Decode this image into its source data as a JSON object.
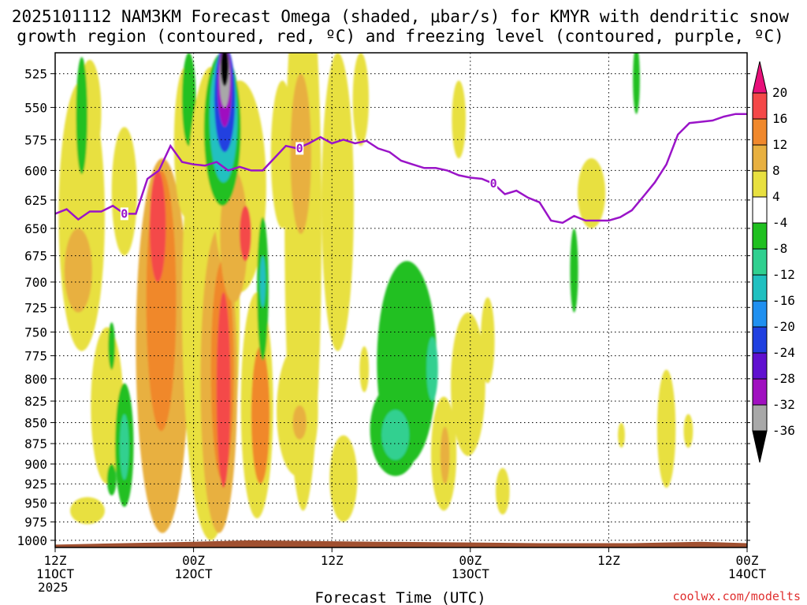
{
  "chart_data": {
    "type": "heatmap",
    "title": [
      "2025101112 NAM3KM Forecast Omega (shaded, μbar/s) for KMYR with dendritic snow",
      "growth region (contoured, red, ºC) and freezing level (contoured, purple, ºC)"
    ],
    "xlabel": "Forecast Time (UTC)",
    "credit": "coolwx.com/modelts",
    "x_range_hours": [
      0,
      60
    ],
    "x_ticks": [
      {
        "hour": 0,
        "lines": [
          "12Z",
          "11OCT",
          "2025"
        ]
      },
      {
        "hour": 12,
        "lines": [
          "00Z",
          "12OCT"
        ]
      },
      {
        "hour": 24,
        "lines": [
          "12Z"
        ]
      },
      {
        "hour": 36,
        "lines": [
          "00Z",
          "13OCT"
        ]
      },
      {
        "hour": 48,
        "lines": [
          "12Z"
        ]
      },
      {
        "hour": 60,
        "lines": [
          "00Z",
          "14OCT"
        ]
      }
    ],
    "y_range_hpa": [
      510,
      1010
    ],
    "y_ticks": [
      "525",
      "550",
      "575",
      "600",
      "625",
      "650",
      "675",
      "700",
      "725",
      "750",
      "775",
      "800",
      "825",
      "850",
      "875",
      "900",
      "925",
      "950",
      "975",
      "1000"
    ],
    "colorbar": {
      "labels": [
        "20",
        "16",
        "12",
        "8",
        "4",
        "-4",
        "-8",
        "-12",
        "-16",
        "-20",
        "-24",
        "-28",
        "-32",
        "-36"
      ],
      "colors": [
        "#e8107a",
        "#f44848",
        "#f0882c",
        "#e8b040",
        "#e8e040",
        "#ffffff",
        "#20c020",
        "#30d090",
        "#20c0c0",
        "#2090f0",
        "#2040e0",
        "#6010d0",
        "#a010c0",
        "#a8a8a8",
        "#000000"
      ]
    },
    "freezing_level": {
      "label": "0",
      "label_points": [
        [
          6.0,
          637
        ],
        [
          21.2,
          582
        ],
        [
          38.0,
          611
        ]
      ],
      "points": [
        [
          0,
          637
        ],
        [
          1,
          633
        ],
        [
          2,
          642
        ],
        [
          3,
          635
        ],
        [
          4,
          635
        ],
        [
          5,
          630
        ],
        [
          6,
          637
        ],
        [
          7,
          637
        ],
        [
          8,
          607
        ],
        [
          9,
          600
        ],
        [
          10,
          580
        ],
        [
          11,
          593
        ],
        [
          12,
          595
        ],
        [
          13,
          596
        ],
        [
          14,
          593
        ],
        [
          15,
          600
        ],
        [
          16,
          597
        ],
        [
          17,
          600
        ],
        [
          18,
          600
        ],
        [
          19,
          590
        ],
        [
          20,
          580
        ],
        [
          21,
          582
        ],
        [
          22,
          578
        ],
        [
          23,
          573
        ],
        [
          24,
          578
        ],
        [
          25,
          575
        ],
        [
          26,
          578
        ],
        [
          27,
          576
        ],
        [
          28,
          582
        ],
        [
          29,
          585
        ],
        [
          30,
          592
        ],
        [
          31,
          595
        ],
        [
          32,
          598
        ],
        [
          33,
          598
        ],
        [
          34,
          600
        ],
        [
          35,
          604
        ],
        [
          36,
          606
        ],
        [
          37,
          607
        ],
        [
          38,
          611
        ],
        [
          39,
          620
        ],
        [
          40,
          617
        ],
        [
          41,
          623
        ],
        [
          42,
          627
        ],
        [
          43,
          643
        ],
        [
          44,
          645
        ],
        [
          45,
          639
        ],
        [
          46,
          643
        ],
        [
          47,
          643
        ],
        [
          48,
          643
        ],
        [
          49,
          640
        ],
        [
          50,
          634
        ],
        [
          51,
          622
        ],
        [
          52,
          610
        ],
        [
          53,
          595
        ],
        [
          54,
          571
        ],
        [
          55,
          562
        ],
        [
          56,
          561
        ],
        [
          57,
          560
        ],
        [
          58,
          557
        ],
        [
          59,
          555
        ],
        [
          60,
          555
        ]
      ]
    },
    "terrain_color": "#a05030",
    "fields": [
      {
        "value": 6,
        "cx": 2.3,
        "cy": 650,
        "rx": 2.0,
        "ry": 120
      },
      {
        "value": 10,
        "cx": 2.0,
        "cy": 690,
        "rx": 1.2,
        "ry": 40
      },
      {
        "value": 5,
        "cx": 4.5,
        "cy": 835,
        "rx": 1.4,
        "ry": 90
      },
      {
        "value": 5,
        "cx": 2.8,
        "cy": 960,
        "rx": 1.5,
        "ry": 18
      },
      {
        "value": 5,
        "cx": 3.0,
        "cy": 555,
        "rx": 1.0,
        "ry": 40
      },
      {
        "value": -6,
        "cx": 2.3,
        "cy": 558,
        "rx": 0.5,
        "ry": 45
      },
      {
        "value": 5,
        "cx": 6.0,
        "cy": 620,
        "rx": 1.1,
        "ry": 55
      },
      {
        "value": 8,
        "cx": 9.3,
        "cy": 790,
        "rx": 2.3,
        "ry": 200
      },
      {
        "value": 14,
        "cx": 9.2,
        "cy": 730,
        "rx": 1.3,
        "ry": 130
      },
      {
        "value": 19,
        "cx": 8.9,
        "cy": 650,
        "rx": 0.7,
        "ry": 50
      },
      {
        "value": 5,
        "cx": 11.3,
        "cy": 580,
        "rx": 1.0,
        "ry": 60
      },
      {
        "value": -5,
        "cx": 11.6,
        "cy": 545,
        "rx": 0.6,
        "ry": 35
      },
      {
        "value": -6,
        "cx": 6.0,
        "cy": 880,
        "rx": 0.8,
        "ry": 75
      },
      {
        "value": -10,
        "cx": 6.0,
        "cy": 880,
        "rx": 0.4,
        "ry": 40
      },
      {
        "value": -6,
        "cx": 4.9,
        "cy": 765,
        "rx": 0.3,
        "ry": 25
      },
      {
        "value": -6,
        "cx": 4.9,
        "cy": 920,
        "rx": 0.4,
        "ry": 20
      },
      {
        "value": 6,
        "cx": 13.5,
        "cy": 760,
        "rx": 2.5,
        "ry": 240
      },
      {
        "value": 11,
        "cx": 14.2,
        "cy": 820,
        "rx": 1.6,
        "ry": 170
      },
      {
        "value": 15,
        "cx": 14.5,
        "cy": 800,
        "rx": 1.0,
        "ry": 120
      },
      {
        "value": 19,
        "cx": 14.6,
        "cy": 820,
        "rx": 0.6,
        "ry": 110
      },
      {
        "value": 6,
        "cx": 16.0,
        "cy": 620,
        "rx": 2.3,
        "ry": 90
      },
      {
        "value": 10,
        "cx": 15.5,
        "cy": 660,
        "rx": 1.2,
        "ry": 60
      },
      {
        "value": 16,
        "cx": 16.5,
        "cy": 655,
        "rx": 0.5,
        "ry": 25
      },
      {
        "value": -6,
        "cx": 14.5,
        "cy": 570,
        "rx": 1.6,
        "ry": 60
      },
      {
        "value": -14,
        "cx": 14.6,
        "cy": 560,
        "rx": 1.2,
        "ry": 50
      },
      {
        "value": -22,
        "cx": 14.7,
        "cy": 545,
        "rx": 0.9,
        "ry": 40
      },
      {
        "value": -30,
        "cx": 14.7,
        "cy": 535,
        "rx": 0.6,
        "ry": 30
      },
      {
        "value": -34,
        "cx": 14.7,
        "cy": 528,
        "rx": 0.45,
        "ry": 22
      },
      {
        "value": -38,
        "cx": 14.7,
        "cy": 520,
        "rx": 0.35,
        "ry": 14
      },
      {
        "value": 6,
        "cx": 17.5,
        "cy": 840,
        "rx": 1.4,
        "ry": 130
      },
      {
        "value": 12,
        "cx": 17.8,
        "cy": 845,
        "rx": 0.8,
        "ry": 80
      },
      {
        "value": 15,
        "cx": 17.9,
        "cy": 845,
        "rx": 0.5,
        "ry": 55
      },
      {
        "value": -6,
        "cx": 18.0,
        "cy": 710,
        "rx": 0.5,
        "ry": 70
      },
      {
        "value": -12,
        "cx": 18.0,
        "cy": 700,
        "rx": 0.25,
        "ry": 25
      },
      {
        "value": 5,
        "cx": 19.7,
        "cy": 590,
        "rx": 1.0,
        "ry": 60
      },
      {
        "value": 6,
        "cx": 21.5,
        "cy": 700,
        "rx": 1.6,
        "ry": 260
      },
      {
        "value": 10,
        "cx": 21.3,
        "cy": 590,
        "rx": 0.9,
        "ry": 65
      },
      {
        "value": 6,
        "cx": 24.5,
        "cy": 640,
        "rx": 1.4,
        "ry": 130
      },
      {
        "value": 6,
        "cx": 26.5,
        "cy": 545,
        "rx": 0.7,
        "ry": 35
      },
      {
        "value": 6,
        "cx": 21.0,
        "cy": 840,
        "rx": 1.8,
        "ry": 75
      },
      {
        "value": 10,
        "cx": 21.2,
        "cy": 850,
        "rx": 0.6,
        "ry": 20
      },
      {
        "value": 6,
        "cx": 25.0,
        "cy": 920,
        "rx": 1.2,
        "ry": 55
      },
      {
        "value": 5,
        "cx": 26.8,
        "cy": 790,
        "rx": 0.4,
        "ry": 25
      },
      {
        "value": -6,
        "cx": 30.5,
        "cy": 790,
        "rx": 2.6,
        "ry": 110
      },
      {
        "value": -6,
        "cx": 29.5,
        "cy": 860,
        "rx": 2.2,
        "ry": 55
      },
      {
        "value": -10,
        "cx": 29.5,
        "cy": 865,
        "rx": 1.2,
        "ry": 30
      },
      {
        "value": -10,
        "cx": 32.7,
        "cy": 790,
        "rx": 0.5,
        "ry": 35
      },
      {
        "value": 6,
        "cx": 33.7,
        "cy": 890,
        "rx": 1.1,
        "ry": 70
      },
      {
        "value": 11,
        "cx": 33.8,
        "cy": 890,
        "rx": 0.4,
        "ry": 35
      },
      {
        "value": 6,
        "cx": 35.8,
        "cy": 810,
        "rx": 1.5,
        "ry": 80
      },
      {
        "value": 5,
        "cx": 37.5,
        "cy": 760,
        "rx": 0.6,
        "ry": 45
      },
      {
        "value": 5,
        "cx": 38.8,
        "cy": 935,
        "rx": 0.6,
        "ry": 30
      },
      {
        "value": 5,
        "cx": 35.0,
        "cy": 560,
        "rx": 0.6,
        "ry": 30
      },
      {
        "value": 5,
        "cx": 46.5,
        "cy": 620,
        "rx": 1.2,
        "ry": 30
      },
      {
        "value": -6,
        "cx": 45.0,
        "cy": 690,
        "rx": 0.35,
        "ry": 40
      },
      {
        "value": -6,
        "cx": 50.4,
        "cy": 530,
        "rx": 0.3,
        "ry": 25
      },
      {
        "value": 5,
        "cx": 53.0,
        "cy": 860,
        "rx": 0.8,
        "ry": 70
      },
      {
        "value": 5,
        "cx": 54.9,
        "cy": 860,
        "rx": 0.4,
        "ry": 20
      },
      {
        "value": 5,
        "cx": 49.1,
        "cy": 865,
        "rx": 0.3,
        "ry": 15
      }
    ]
  }
}
